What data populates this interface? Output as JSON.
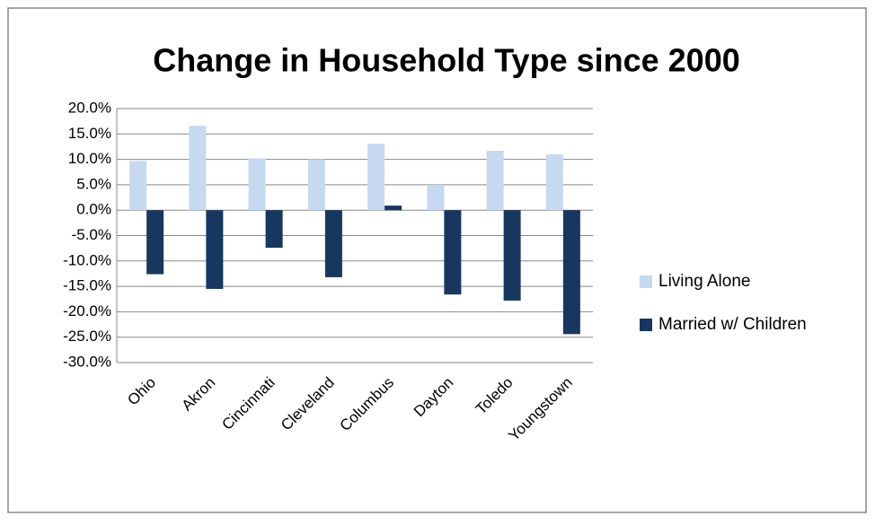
{
  "chart_data": {
    "type": "bar",
    "title": "Change in Household Type since 2000",
    "categories": [
      "Ohio",
      "Akron",
      "Cincinnati",
      "Cleveland",
      "Columbus",
      "Dayton",
      "Toledo",
      "Youngstown"
    ],
    "series": [
      {
        "name": "Living Alone",
        "color": "#c6d9f1",
        "values": [
          9.7,
          16.6,
          10.2,
          10.0,
          13.1,
          5.0,
          11.7,
          11.0
        ]
      },
      {
        "name": "Married w/ Children",
        "color": "#17375e",
        "values": [
          -12.6,
          -15.5,
          -7.4,
          -13.2,
          0.9,
          -16.6,
          -17.8,
          -24.4
        ]
      }
    ],
    "ylim": [
      -30,
      20
    ],
    "yticks": [
      {
        "value": -30,
        "label": "-30.0%"
      },
      {
        "value": -25,
        "label": "-25.0%"
      },
      {
        "value": -20,
        "label": "-20.0%"
      },
      {
        "value": -15,
        "label": "-15.0%"
      },
      {
        "value": -10,
        "label": "-10.0%"
      },
      {
        "value": -5,
        "label": "-5.0%"
      },
      {
        "value": 0,
        "label": "0.0%"
      },
      {
        "value": 5,
        "label": "5.0%"
      },
      {
        "value": 10,
        "label": "10.0%"
      },
      {
        "value": 15,
        "label": "15.0%"
      },
      {
        "value": 20,
        "label": "20.0%"
      }
    ],
    "grid": true,
    "legend": "right"
  }
}
